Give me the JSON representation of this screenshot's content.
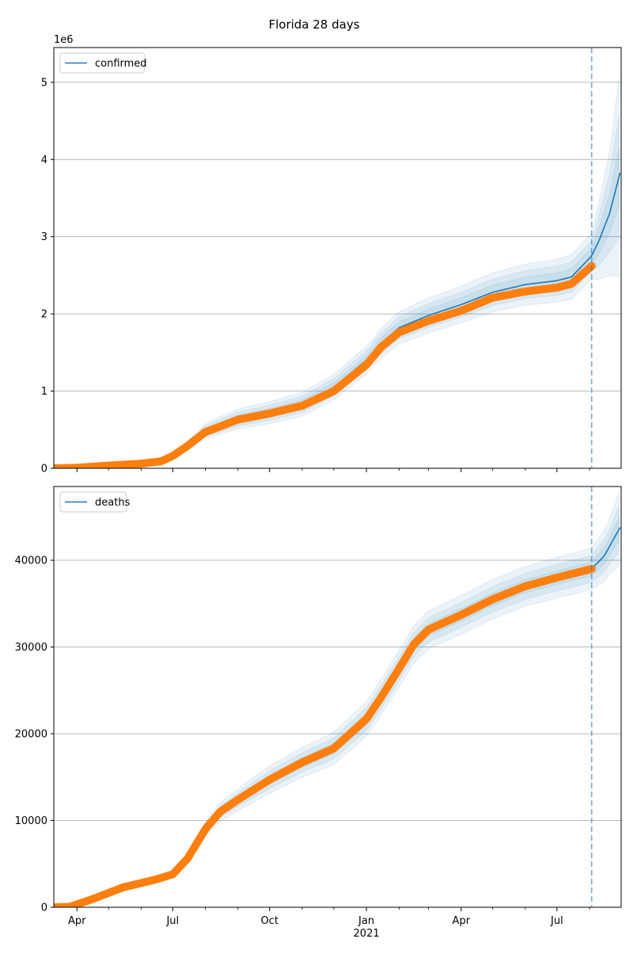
{
  "figure_title": "Florida 28 days",
  "colors": {
    "fit_line": "#1f77b4",
    "band": "#1f77b4",
    "observed": "#ff7f0e",
    "forecast_marker": "#1f77b4",
    "grid": "#b0b0b0"
  },
  "date_axis": {
    "start": "2020-03-10",
    "end": "2021-08-31",
    "major_ticks": [
      {
        "date": "2020-04-01",
        "label": "Apr"
      },
      {
        "date": "2020-07-01",
        "label": "Jul"
      },
      {
        "date": "2020-10-01",
        "label": "Oct"
      },
      {
        "date": "2021-01-01",
        "label": "Jan"
      },
      {
        "date": "2021-04-01",
        "label": "Apr"
      },
      {
        "date": "2021-07-01",
        "label": "Jul"
      }
    ],
    "minor_ticks": [
      "2020-05-01",
      "2020-06-01",
      "2020-08-01",
      "2020-09-01",
      "2020-11-01",
      "2020-12-01",
      "2021-02-01",
      "2021-03-01",
      "2021-05-01",
      "2021-06-01",
      "2021-08-01"
    ],
    "year_label": {
      "date": "2021-01-01",
      "text": "2021"
    }
  },
  "chart_data": [
    {
      "type": "line",
      "title": "Florida 28 days",
      "legend": {
        "entries": [
          "confirmed"
        ],
        "placement": "top-left"
      },
      "offset_label": "1e6",
      "grid": "horizontal",
      "ylim": [
        0,
        5.45
      ],
      "yticks": [
        0,
        1,
        2,
        3,
        4,
        5
      ],
      "forecast_start": "2021-08-03",
      "series": [
        {
          "name": "confirmed",
          "role": "fit",
          "x": [
            "2020-03-10",
            "2020-04-01",
            "2020-05-01",
            "2020-06-01",
            "2020-06-20",
            "2020-07-01",
            "2020-07-15",
            "2020-08-01",
            "2020-09-01",
            "2020-10-01",
            "2020-11-01",
            "2020-12-01",
            "2021-01-01",
            "2021-01-15",
            "2021-02-01",
            "2021-03-01",
            "2021-04-01",
            "2021-05-01",
            "2021-06-01",
            "2021-07-01",
            "2021-07-15",
            "2021-08-03",
            "2021-08-10",
            "2021-08-20",
            "2021-08-31"
          ],
          "values": [
            0,
            0.007,
            0.035,
            0.06,
            0.09,
            0.16,
            0.29,
            0.48,
            0.64,
            0.72,
            0.83,
            1.05,
            1.4,
            1.62,
            1.82,
            1.98,
            2.12,
            2.28,
            2.38,
            2.43,
            2.48,
            2.75,
            2.95,
            3.3,
            3.88
          ]
        },
        {
          "name": "observed",
          "role": "observed",
          "x": [
            "2020-03-10",
            "2020-04-01",
            "2020-05-01",
            "2020-06-01",
            "2020-06-20",
            "2020-07-01",
            "2020-07-15",
            "2020-08-01",
            "2020-09-01",
            "2020-10-01",
            "2020-11-01",
            "2020-12-01",
            "2021-01-01",
            "2021-01-15",
            "2021-02-01",
            "2021-03-01",
            "2021-04-01",
            "2021-05-01",
            "2021-06-01",
            "2021-07-01",
            "2021-07-15",
            "2021-08-03"
          ],
          "values": [
            0,
            0.007,
            0.035,
            0.06,
            0.09,
            0.16,
            0.29,
            0.47,
            0.63,
            0.71,
            0.81,
            1.0,
            1.34,
            1.57,
            1.76,
            1.91,
            2.04,
            2.21,
            2.29,
            2.34,
            2.39,
            2.62
          ]
        }
      ],
      "band_widths": [
        {
          "x": [
            "2020-03-10",
            "2020-06-01",
            "2020-07-15",
            "2020-08-01",
            "2020-09-01",
            "2021-01-01",
            "2021-02-15",
            "2021-04-01",
            "2021-07-01",
            "2021-08-03",
            "2021-08-20",
            "2021-08-31"
          ],
          "half": [
            0,
            0.01,
            0.06,
            0.1,
            0.13,
            0.18,
            0.22,
            0.24,
            0.28,
            0.3,
            0.8,
            1.4
          ]
        },
        {
          "x": [
            "2020-03-10",
            "2020-06-01",
            "2020-07-15",
            "2020-08-01",
            "2020-09-01",
            "2021-01-01",
            "2021-02-15",
            "2021-04-01",
            "2021-07-01",
            "2021-08-03",
            "2021-08-20",
            "2021-08-31"
          ],
          "half": [
            0,
            0.006,
            0.04,
            0.07,
            0.09,
            0.12,
            0.15,
            0.16,
            0.19,
            0.2,
            0.5,
            0.85
          ]
        },
        {
          "x": [
            "2020-03-10",
            "2020-06-01",
            "2020-07-15",
            "2020-08-01",
            "2020-09-01",
            "2021-01-01",
            "2021-02-15",
            "2021-04-01",
            "2021-07-01",
            "2021-08-03",
            "2021-08-20",
            "2021-08-31"
          ],
          "half": [
            0,
            0.003,
            0.02,
            0.035,
            0.05,
            0.06,
            0.08,
            0.09,
            0.1,
            0.11,
            0.25,
            0.4
          ]
        }
      ]
    },
    {
      "type": "line",
      "legend": {
        "entries": [
          "deaths"
        ],
        "placement": "top-left"
      },
      "grid": "horizontal",
      "ylim": [
        0,
        48500
      ],
      "yticks": [
        0,
        10000,
        20000,
        30000,
        40000
      ],
      "forecast_start": "2021-08-03",
      "series": [
        {
          "name": "deaths",
          "role": "fit",
          "x": [
            "2020-03-10",
            "2020-03-25",
            "2020-04-15",
            "2020-05-15",
            "2020-06-15",
            "2020-07-01",
            "2020-07-15",
            "2020-08-01",
            "2020-08-15",
            "2020-09-01",
            "2020-10-01",
            "2020-11-01",
            "2020-12-01",
            "2021-01-01",
            "2021-01-15",
            "2021-02-01",
            "2021-02-15",
            "2021-03-01",
            "2021-04-01",
            "2021-05-01",
            "2021-06-01",
            "2021-07-01",
            "2021-08-03",
            "2021-08-15",
            "2021-08-31"
          ],
          "values": [
            0,
            50,
            900,
            2300,
            3200,
            3800,
            5600,
            9000,
            11000,
            12400,
            14700,
            16700,
            18300,
            21700,
            24200,
            27500,
            30300,
            32000,
            33700,
            35500,
            37000,
            38000,
            39000,
            40500,
            44000
          ]
        },
        {
          "name": "observed",
          "role": "observed",
          "x": [
            "2020-03-10",
            "2020-03-25",
            "2020-04-15",
            "2020-05-15",
            "2020-06-15",
            "2020-07-01",
            "2020-07-15",
            "2020-08-01",
            "2020-08-15",
            "2020-09-01",
            "2020-10-01",
            "2020-11-01",
            "2020-12-01",
            "2021-01-01",
            "2021-01-15",
            "2021-02-01",
            "2021-02-15",
            "2021-03-01",
            "2021-04-01",
            "2021-05-01",
            "2021-06-01",
            "2021-07-01",
            "2021-08-03"
          ],
          "values": [
            0,
            50,
            900,
            2300,
            3200,
            3800,
            5600,
            9000,
            11000,
            12400,
            14700,
            16700,
            18300,
            21700,
            24200,
            27500,
            30300,
            32000,
            33700,
            35500,
            37000,
            38000,
            39000
          ]
        }
      ],
      "band_widths": [
        {
          "x": [
            "2020-03-10",
            "2020-06-15",
            "2020-08-01",
            "2020-10-01",
            "2021-01-01",
            "2021-03-01",
            "2021-06-01",
            "2021-08-03",
            "2021-08-20",
            "2021-08-31"
          ],
          "half": [
            0,
            100,
            900,
            1600,
            2000,
            2200,
            2300,
            2400,
            3200,
            4500
          ]
        },
        {
          "x": [
            "2020-03-10",
            "2020-06-15",
            "2020-08-01",
            "2020-10-01",
            "2021-01-01",
            "2021-03-01",
            "2021-06-01",
            "2021-08-03",
            "2021-08-20",
            "2021-08-31"
          ],
          "half": [
            0,
            60,
            550,
            1000,
            1300,
            1400,
            1500,
            1550,
            2000,
            2800
          ]
        },
        {
          "x": [
            "2020-03-10",
            "2020-06-15",
            "2020-08-01",
            "2020-10-01",
            "2021-01-01",
            "2021-03-01",
            "2021-06-01",
            "2021-08-03",
            "2021-08-20",
            "2021-08-31"
          ],
          "half": [
            0,
            30,
            250,
            500,
            650,
            700,
            750,
            800,
            1000,
            1400
          ]
        }
      ]
    }
  ]
}
